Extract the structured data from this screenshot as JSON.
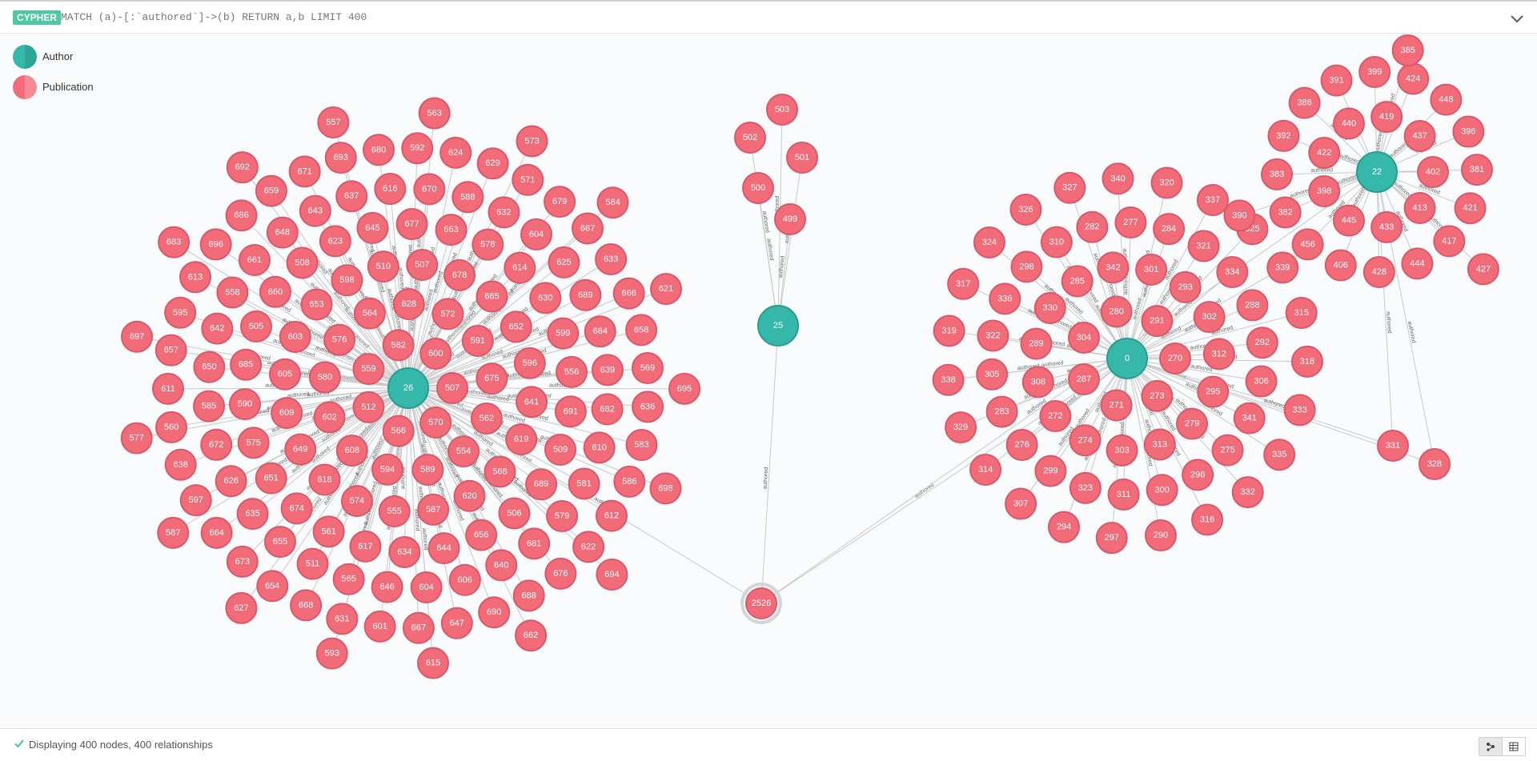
{
  "query_bar": {
    "badge": "CYPHER",
    "query": "MATCH (a)-[:`authored`]->(b) RETURN a,b LIMIT 400"
  },
  "legend": [
    {
      "label": "Author",
      "color": "#35b7a9",
      "icon": "author-color-swatch"
    },
    {
      "label": "Publication",
      "color": "#f26b79",
      "icon": "publication-color-swatch"
    }
  ],
  "relationship_type": "authored",
  "colors": {
    "author": "#35b7a9",
    "author_border": "#2a9c8f",
    "publication": "#f26b79",
    "publication_border": "#d9596a",
    "edge": "#c8c8c8"
  },
  "graph": {
    "authors": [
      {
        "id": "26"
      },
      {
        "id": "25"
      },
      {
        "id": "0"
      },
      {
        "id": "22"
      }
    ],
    "selected_node": "2526",
    "clusters": {
      "26": [
        "507",
        "570",
        "566",
        "512",
        "559",
        "582",
        "600",
        "562",
        "554",
        "589",
        "594",
        "608",
        "602",
        "580",
        "576",
        "564",
        "628",
        "572",
        "591",
        "675",
        "568",
        "620",
        "587",
        "555",
        "574",
        "618",
        "649",
        "609",
        "605",
        "603",
        "653",
        "598",
        "510",
        "507",
        "678",
        "665",
        "652",
        "596",
        "641",
        "619",
        "656",
        "644",
        "634",
        "617",
        "561",
        "674",
        "651",
        "575",
        "590",
        "685",
        "505",
        "660",
        "508",
        "623",
        "645",
        "677",
        "663",
        "578",
        "614",
        "630",
        "599",
        "556",
        "691",
        "509",
        "689",
        "506",
        "604",
        "646",
        "565",
        "511",
        "655",
        "635",
        "626",
        "672",
        "585",
        "650",
        "642",
        "558",
        "661",
        "648",
        "643",
        "637",
        "616",
        "670",
        "588",
        "632",
        "604",
        "625",
        "689",
        "684",
        "639",
        "682",
        "610",
        "581",
        "579",
        "681",
        "640",
        "606",
        "631",
        "668",
        "654",
        "673",
        "664",
        "597",
        "638",
        "560",
        "611",
        "657",
        "595",
        "613",
        "696",
        "686",
        "659",
        "671",
        "693",
        "680",
        "592",
        "624",
        "629",
        "571",
        "679",
        "687",
        "633",
        "666",
        "658",
        "569",
        "636",
        "583",
        "586",
        "612",
        "622",
        "676",
        "688",
        "690",
        "647",
        "667",
        "601",
        "627",
        "587",
        "577",
        "697",
        "683",
        "692",
        "557",
        "563",
        "573",
        "584",
        "621",
        "695",
        "698",
        "694",
        "662",
        "615",
        "593"
      ],
      "25": [
        "503",
        "502",
        "501",
        "500",
        "499"
      ],
      "0": [
        "270",
        "273",
        "271",
        "287",
        "304",
        "280",
        "291",
        "295",
        "279",
        "313",
        "303",
        "274",
        "272",
        "308",
        "289",
        "330",
        "285",
        "342",
        "301",
        "293",
        "302",
        "312",
        "275",
        "296",
        "300",
        "311",
        "323",
        "299",
        "276",
        "283",
        "305",
        "322",
        "336",
        "298",
        "310",
        "282",
        "277",
        "284",
        "321",
        "334",
        "288",
        "292",
        "306",
        "341",
        "316",
        "290",
        "297",
        "294",
        "307",
        "314",
        "329",
        "338",
        "319",
        "317",
        "324",
        "326",
        "327",
        "340",
        "320",
        "337",
        "325",
        "339",
        "315",
        "318",
        "333",
        "335",
        "332"
      ],
      "22": [
        "402",
        "413",
        "433",
        "445",
        "398",
        "422",
        "440",
        "419",
        "437",
        "421",
        "417",
        "444",
        "428",
        "406",
        "456",
        "382",
        "383",
        "392",
        "386",
        "391",
        "399",
        "424",
        "448",
        "396",
        "381",
        "427",
        "390",
        "385"
      ]
    },
    "extra_publications": [
      "331",
      "328"
    ]
  },
  "status": {
    "text": "Displaying 400 nodes, 400 relationships",
    "icon": "check-icon"
  },
  "view_toggle": [
    {
      "label": "graph-view",
      "icon": "graph-view-icon",
      "active": true
    },
    {
      "label": "table-view",
      "icon": "table-view-icon",
      "active": false
    }
  ]
}
